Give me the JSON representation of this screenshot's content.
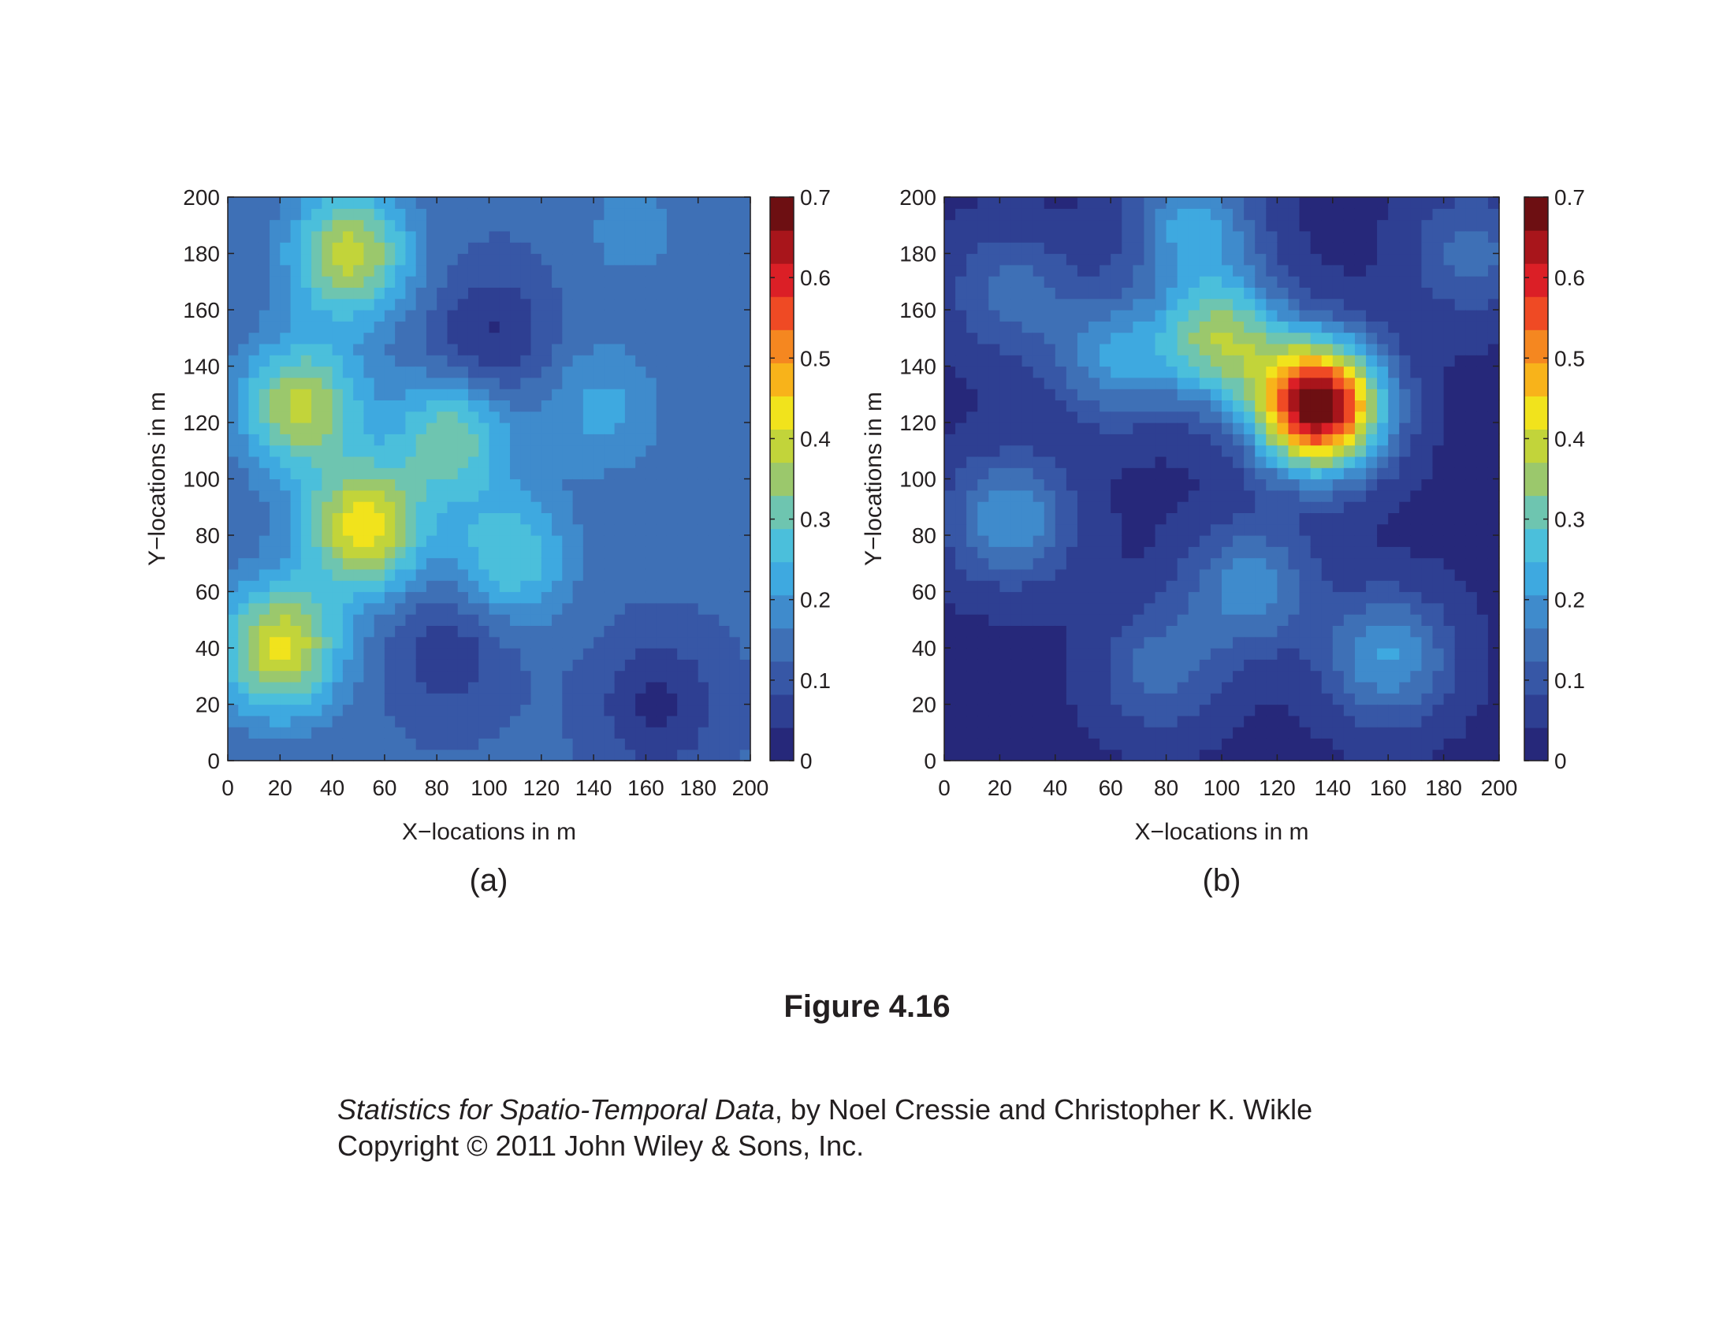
{
  "figure": {
    "title": "Figure 4.16",
    "credit_book": "Statistics for Spatio-Temporal Data",
    "credit_authors": ", by Noel Cressie and Christopher K. Wikle",
    "credit_copyright": "Copyright © 2011 John Wiley & Sons, Inc."
  },
  "colors": {
    "colormap": [
      "#26287a",
      "#2e3f92",
      "#3757a6",
      "#3e70b6",
      "#3f8bcc",
      "#3ea9e0",
      "#4bbfdb",
      "#6ec5b0",
      "#9bc86c",
      "#c2d43a",
      "#f1e31c",
      "#f8b31a",
      "#f58720",
      "#ef4a24",
      "#db1f26",
      "#a8151b",
      "#6d0f12"
    ],
    "axis": "#231f20"
  },
  "chart_data": [
    {
      "type": "heatmap",
      "panel_label": "(a)",
      "xlabel": "X−locations in m",
      "ylabel": "Y−locations in m",
      "xlim": [
        0,
        200
      ],
      "ylim": [
        0,
        200
      ],
      "xticks": [
        0,
        20,
        40,
        60,
        80,
        100,
        120,
        140,
        160,
        180,
        200
      ],
      "yticks": [
        0,
        20,
        40,
        60,
        80,
        100,
        120,
        140,
        160,
        180,
        200
      ],
      "colorbar": {
        "range": [
          0,
          0.7
        ],
        "ticks": [
          0,
          0.1,
          0.2,
          0.3,
          0.4,
          0.5,
          0.6,
          0.7
        ]
      },
      "background": 0.13,
      "peaks": [
        {
          "x": 47,
          "y": 180,
          "value": 0.39
        },
        {
          "x": 28,
          "y": 126,
          "value": 0.38
        },
        {
          "x": 52,
          "y": 83,
          "value": 0.43
        },
        {
          "x": 20,
          "y": 40,
          "value": 0.42
        },
        {
          "x": 86,
          "y": 115,
          "value": 0.32
        },
        {
          "x": 108,
          "y": 72,
          "value": 0.29
        },
        {
          "x": 143,
          "y": 125,
          "value": 0.22
        },
        {
          "x": 155,
          "y": 188,
          "value": 0.18
        },
        {
          "x": 100,
          "y": 150,
          "value": 0.03
        },
        {
          "x": 85,
          "y": 40,
          "value": 0.05
        },
        {
          "x": 165,
          "y": 20,
          "value": 0.03
        }
      ]
    },
    {
      "type": "heatmap",
      "panel_label": "(b)",
      "xlabel": "X−locations in m",
      "ylabel": "Y−locations in m",
      "xlim": [
        0,
        200
      ],
      "ylim": [
        0,
        200
      ],
      "xticks": [
        0,
        20,
        40,
        60,
        80,
        100,
        120,
        140,
        160,
        180,
        200
      ],
      "yticks": [
        0,
        20,
        40,
        60,
        80,
        100,
        120,
        140,
        160,
        180,
        200
      ],
      "colorbar": {
        "range": [
          0,
          0.7
        ],
        "ticks": [
          0,
          0.1,
          0.2,
          0.3,
          0.4,
          0.5,
          0.6,
          0.7
        ]
      },
      "background": 0.03,
      "peaks": [
        {
          "x": 135,
          "y": 126,
          "value": 0.7
        },
        {
          "x": 100,
          "y": 150,
          "value": 0.34
        },
        {
          "x": 90,
          "y": 190,
          "value": 0.22
        },
        {
          "x": 62,
          "y": 143,
          "value": 0.2
        },
        {
          "x": 24,
          "y": 86,
          "value": 0.2
        },
        {
          "x": 110,
          "y": 62,
          "value": 0.19
        },
        {
          "x": 160,
          "y": 37,
          "value": 0.21
        },
        {
          "x": 78,
          "y": 33,
          "value": 0.14
        },
        {
          "x": 190,
          "y": 180,
          "value": 0.14
        },
        {
          "x": 24,
          "y": 166,
          "value": 0.14
        }
      ]
    }
  ]
}
